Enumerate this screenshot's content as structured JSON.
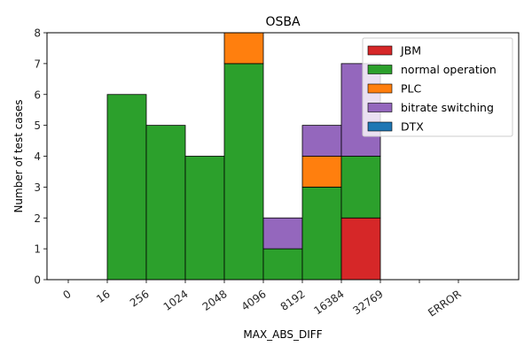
{
  "chart_data": {
    "type": "bar",
    "stacked": true,
    "title": "OSBA",
    "xlabel": "MAX_ABS_DIFF",
    "ylabel": "Number of test cases",
    "ylim": [
      0,
      8
    ],
    "yticks": [
      "0",
      "1",
      "2",
      "3",
      "4",
      "5",
      "6",
      "7",
      "8"
    ],
    "xticks": [
      "0",
      "16",
      "256",
      "1024",
      "2048",
      "4096",
      "8192",
      "16384",
      "32769",
      "",
      "ERROR"
    ],
    "bins": [
      "0-16",
      "16-256",
      "256-1024",
      "1024-2048",
      "2048-4096",
      "4096-8192",
      "8192-16384",
      "16384-32769",
      "32769-",
      "ERROR"
    ],
    "series": [
      {
        "name": "JBM",
        "color": "#d62728",
        "values": [
          0,
          0,
          0,
          0,
          0,
          0,
          0,
          2,
          0,
          0
        ]
      },
      {
        "name": "normal operation",
        "color": "#2ca02c",
        "values": [
          0,
          6,
          5,
          4,
          7,
          1,
          3,
          2,
          0,
          0
        ]
      },
      {
        "name": "PLC",
        "color": "#ff7f0e",
        "values": [
          0,
          0,
          0,
          0,
          1,
          0,
          1,
          0,
          0,
          0
        ]
      },
      {
        "name": "bitrate switching",
        "color": "#9467bd",
        "values": [
          0,
          0,
          0,
          0,
          0,
          1,
          1,
          3,
          0,
          0
        ]
      },
      {
        "name": "DTX",
        "color": "#1f77b4",
        "values": [
          0,
          0,
          0,
          0,
          0,
          0,
          0,
          0,
          0,
          0
        ]
      }
    ],
    "legend_position": "top-right",
    "grid": false
  }
}
